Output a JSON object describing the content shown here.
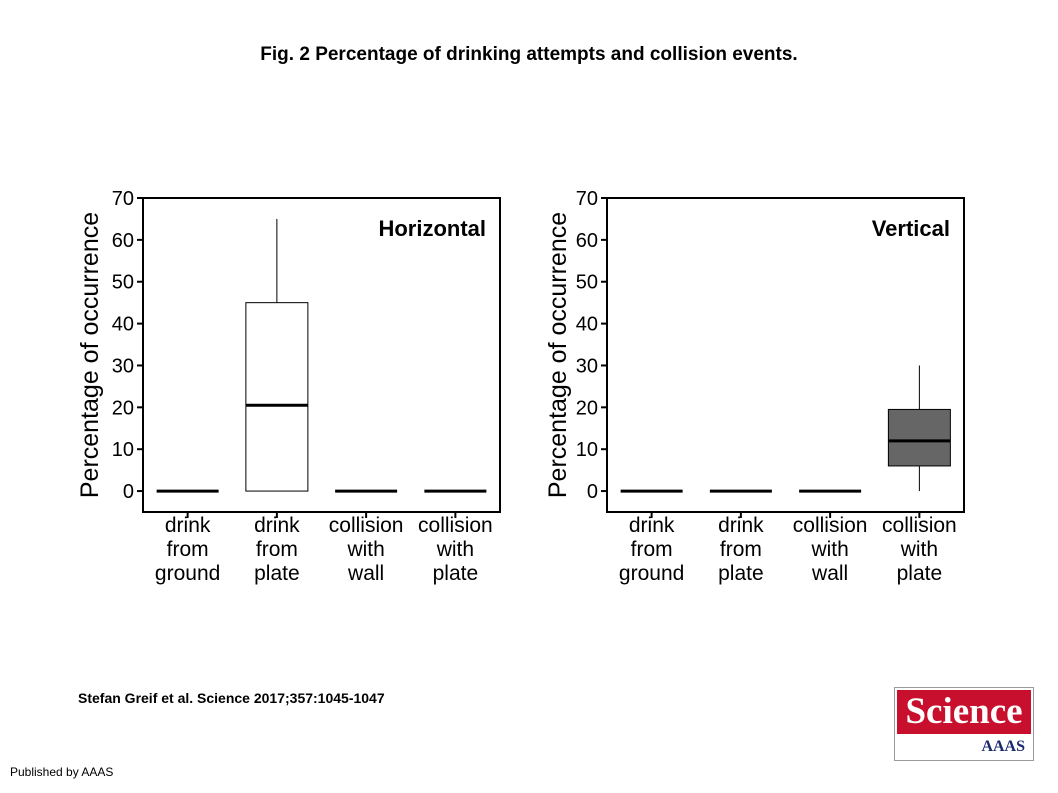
{
  "figure": {
    "title": "Fig. 2 Percentage of drinking attempts and collision events.",
    "citation": "Stefan Greif et al. Science 2017;357:1045-1047",
    "publisher": "Published by AAAS"
  },
  "logo": {
    "wordmark": "Science",
    "sub": "AAAS",
    "brand_color": "#c8102e",
    "sub_color": "#1a2a6c"
  },
  "chart_data": [
    {
      "type": "box",
      "panel_label": "Horizontal",
      "ylabel": "Percentage of occurrence",
      "ylim": [
        -5,
        70
      ],
      "yticks": [
        0,
        10,
        20,
        30,
        40,
        50,
        60,
        70
      ],
      "categories": [
        [
          "drink",
          "from",
          "ground"
        ],
        [
          "drink",
          "from",
          "plate"
        ],
        [
          "collision",
          "with",
          "wall"
        ],
        [
          "collision",
          "with",
          "plate"
        ]
      ],
      "boxes": [
        {
          "whisker_low": 0,
          "q1": 0,
          "median": 0,
          "q3": 0,
          "whisker_high": 0,
          "fill": "#ffffff"
        },
        {
          "whisker_low": 0,
          "q1": 0,
          "median": 20.5,
          "q3": 45,
          "whisker_high": 65,
          "fill": "#ffffff"
        },
        {
          "whisker_low": 0,
          "q1": 0,
          "median": 0,
          "q3": 0,
          "whisker_high": 0,
          "fill": "#ffffff"
        },
        {
          "whisker_low": 0,
          "q1": 0,
          "median": 0,
          "q3": 0,
          "whisker_high": 0,
          "fill": "#ffffff"
        }
      ],
      "grid": false
    },
    {
      "type": "box",
      "panel_label": "Vertical",
      "ylabel": "Percentage of occurrence",
      "ylim": [
        -5,
        70
      ],
      "yticks": [
        0,
        10,
        20,
        30,
        40,
        50,
        60,
        70
      ],
      "categories": [
        [
          "drink",
          "from",
          "ground"
        ],
        [
          "drink",
          "from",
          "plate"
        ],
        [
          "collision",
          "with",
          "wall"
        ],
        [
          "collision",
          "with",
          "plate"
        ]
      ],
      "boxes": [
        {
          "whisker_low": 0,
          "q1": 0,
          "median": 0,
          "q3": 0,
          "whisker_high": 0,
          "fill": "#ffffff"
        },
        {
          "whisker_low": 0,
          "q1": 0,
          "median": 0,
          "q3": 0,
          "whisker_high": 0,
          "fill": "#ffffff"
        },
        {
          "whisker_low": 0,
          "q1": 0,
          "median": 0,
          "q3": 0,
          "whisker_high": 0,
          "fill": "#ffffff"
        },
        {
          "whisker_low": 0,
          "q1": 6,
          "median": 12,
          "q3": 19.5,
          "whisker_high": 30,
          "fill": "#666666"
        }
      ],
      "grid": false
    }
  ]
}
